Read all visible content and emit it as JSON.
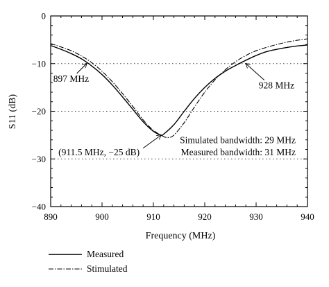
{
  "chart_data": {
    "type": "line",
    "xlabel": "Frequency (MHz)",
    "ylabel": "S11 (dB)",
    "xlim": [
      890,
      940
    ],
    "ylim": [
      -40,
      0
    ],
    "x_ticks": [
      890,
      900,
      910,
      920,
      930,
      940
    ],
    "x_tick_labels": [
      "890",
      "900",
      "910",
      "920",
      "930",
      "940"
    ],
    "y_ticks": [
      0,
      -10,
      -20,
      -30,
      -40
    ],
    "y_tick_labels": [
      "0",
      "−10",
      "−20",
      "−30",
      "−40"
    ],
    "reference_lines": [
      -10,
      -20,
      -30
    ],
    "series": [
      {
        "name": "Measured",
        "style": "solid",
        "x": [
          890,
          892,
          894,
          896,
          898,
          900,
          902,
          904,
          906,
          908,
          910,
          911.5,
          912,
          914,
          916,
          918,
          920,
          922,
          924,
          926,
          928,
          930,
          932,
          934,
          936,
          938,
          940
        ],
        "y": [
          -6.2,
          -7.0,
          -7.9,
          -9.0,
          -10.5,
          -12.3,
          -14.5,
          -17.0,
          -19.6,
          -22.2,
          -24.2,
          -25.0,
          -24.8,
          -22.8,
          -20.0,
          -17.3,
          -15.0,
          -13.1,
          -11.6,
          -10.4,
          -9.3,
          -8.3,
          -7.5,
          -7.0,
          -6.6,
          -6.3,
          -6.1
        ]
      },
      {
        "name": "Stimulated",
        "style": "dashdot",
        "x": [
          890,
          892,
          894,
          896,
          898,
          900,
          902,
          904,
          906,
          908,
          910,
          912,
          913,
          914,
          916,
          918,
          920,
          922,
          924,
          926,
          928,
          930,
          932,
          934,
          936,
          938,
          940
        ],
        "y": [
          -5.8,
          -6.5,
          -7.3,
          -8.4,
          -9.8,
          -11.6,
          -13.8,
          -16.3,
          -19.0,
          -21.8,
          -24.0,
          -25.3,
          -25.5,
          -25.0,
          -22.4,
          -19.1,
          -16.0,
          -13.4,
          -11.3,
          -9.6,
          -8.3,
          -7.3,
          -6.6,
          -6.0,
          -5.5,
          -5.1,
          -4.8
        ]
      }
    ],
    "annotations": [
      {
        "text": "897 MHz",
        "point": [
          897,
          -10
        ],
        "text_at": [
          890.5,
          -13.8
        ]
      },
      {
        "text": "928 MHz",
        "point": [
          928,
          -10
        ],
        "text_at": [
          930.5,
          -15.2
        ]
      },
      {
        "text": "(911.5 MHz, −25 dB)",
        "point": [
          911.5,
          -25
        ],
        "text_at": [
          891.5,
          -29.2
        ]
      },
      {
        "text": "Simulated bandwidth: 29 MHz",
        "text_at": [
          937.7,
          -26.7
        ],
        "anchor": "end"
      },
      {
        "text": "Measured bandwidth: 31 MHz",
        "text_at": [
          937.7,
          -29.2
        ],
        "anchor": "end"
      }
    ],
    "legend": {
      "position": "bottom-left, below chart",
      "entries": [
        {
          "label": "Measured",
          "style": "solid"
        },
        {
          "label": "Stimulated",
          "style": "dashdot"
        }
      ]
    }
  }
}
